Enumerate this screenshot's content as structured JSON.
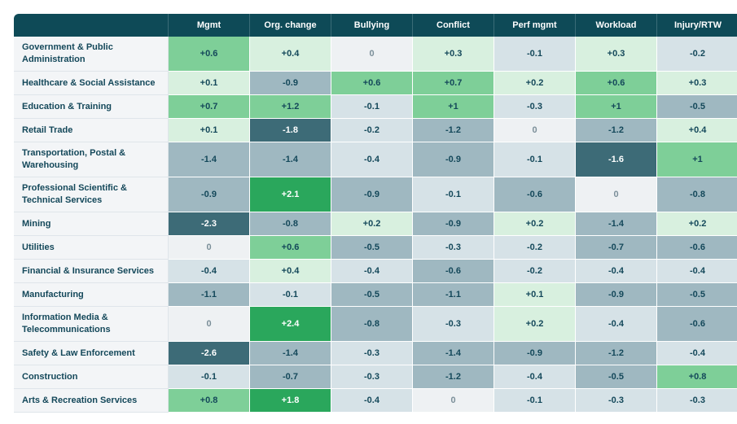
{
  "colors": {
    "header_bg": "#0e4a57",
    "strong_positive": "#2aa75c",
    "positive": "#7ecf98",
    "slight_positive": "#d8f0df",
    "neutral": "#eef1f3",
    "slight_negative": "#d6e2e7",
    "negative": "#9fb8c1",
    "strong_negative": "#3d6b77",
    "industry_text": "#14485a"
  },
  "chart_data": {
    "type": "heatmap",
    "columns": [
      "Mgmt",
      "Org. change",
      "Bullying",
      "Conflict",
      "Perf mgmt",
      "Workload",
      "Injury/RTW"
    ],
    "rows": [
      {
        "industry": "Government & Public Administration",
        "values": [
          0.6,
          0.4,
          0,
          0.3,
          -0.1,
          0.3,
          -0.2
        ],
        "labels": [
          "+0.6",
          "+0.4",
          "0",
          "+0.3",
          "-0.1",
          "+0.3",
          "-0.2"
        ]
      },
      {
        "industry": "Healthcare & Social Assistance",
        "values": [
          0.1,
          -0.9,
          0.6,
          0.7,
          0.2,
          0.6,
          0.3
        ],
        "labels": [
          "+0.1",
          "-0.9",
          "+0.6",
          "+0.7",
          "+0.2",
          "+0.6",
          "+0.3"
        ]
      },
      {
        "industry": "Education & Training",
        "values": [
          0.7,
          1.2,
          -0.1,
          1,
          -0.3,
          1,
          -0.5
        ],
        "labels": [
          "+0.7",
          "+1.2",
          "-0.1",
          "+1",
          "-0.3",
          "+1",
          "-0.5"
        ]
      },
      {
        "industry": "Retail Trade",
        "values": [
          0.1,
          -1.8,
          -0.2,
          -1.2,
          0,
          -1.2,
          0.4
        ],
        "labels": [
          "+0.1",
          "-1.8",
          "-0.2",
          "-1.2",
          "0",
          "-1.2",
          "+0.4"
        ]
      },
      {
        "industry": "Transportation, Postal & Warehousing",
        "values": [
          -1.4,
          -1.4,
          -0.4,
          -0.9,
          -0.1,
          -1.6,
          1
        ],
        "labels": [
          "-1.4",
          "-1.4",
          "-0.4",
          "-0.9",
          "-0.1",
          "-1.6",
          "+1"
        ]
      },
      {
        "industry": "Professional Scientific & Technical Services",
        "values": [
          -0.9,
          2.1,
          -0.9,
          -0.1,
          -0.6,
          0,
          -0.8
        ],
        "labels": [
          "-0.9",
          "+2.1",
          "-0.9",
          "-0.1",
          "-0.6",
          "0",
          "-0.8"
        ]
      },
      {
        "industry": "Mining",
        "values": [
          -2.3,
          -0.8,
          0.2,
          -0.9,
          0.2,
          -1.4,
          0.2
        ],
        "labels": [
          "-2.3",
          "-0.8",
          "+0.2",
          "-0.9",
          "+0.2",
          "-1.4",
          "+0.2"
        ]
      },
      {
        "industry": "Utilities",
        "values": [
          0,
          0.6,
          -0.5,
          -0.3,
          -0.2,
          -0.7,
          -0.6
        ],
        "labels": [
          "0",
          "+0.6",
          "-0.5",
          "-0.3",
          "-0.2",
          "-0.7",
          "-0.6"
        ]
      },
      {
        "industry": "Financial & Insurance Services",
        "values": [
          -0.4,
          0.4,
          -0.4,
          -0.6,
          -0.2,
          -0.4,
          -0.4
        ],
        "labels": [
          "-0.4",
          "+0.4",
          "-0.4",
          "-0.6",
          "-0.2",
          "-0.4",
          "-0.4"
        ]
      },
      {
        "industry": "Manufacturing",
        "values": [
          -1.1,
          -0.1,
          -0.5,
          -1.1,
          0.1,
          -0.9,
          -0.5
        ],
        "labels": [
          "-1.1",
          "-0.1",
          "-0.5",
          "-1.1",
          "+0.1",
          "-0.9",
          "-0.5"
        ]
      },
      {
        "industry": "Information Media & Telecommunications",
        "values": [
          0,
          2.4,
          -0.8,
          -0.3,
          0.2,
          -0.4,
          -0.6
        ],
        "labels": [
          "0",
          "+2.4",
          "-0.8",
          "-0.3",
          "+0.2",
          "-0.4",
          "-0.6"
        ]
      },
      {
        "industry": "Safety & Law Enforcement",
        "values": [
          -2.6,
          -1.4,
          -0.3,
          -1.4,
          -0.9,
          -1.2,
          -0.4
        ],
        "labels": [
          "-2.6",
          "-1.4",
          "-0.3",
          "-1.4",
          "-0.9",
          "-1.2",
          "-0.4"
        ]
      },
      {
        "industry": "Construction",
        "values": [
          -0.1,
          -0.7,
          -0.3,
          -1.2,
          -0.4,
          -0.5,
          0.8
        ],
        "labels": [
          "-0.1",
          "-0.7",
          "-0.3",
          "-1.2",
          "-0.4",
          "-0.5",
          "+0.8"
        ]
      },
      {
        "industry": "Arts & Recreation Services",
        "values": [
          0.8,
          1.8,
          -0.4,
          0,
          -0.1,
          -0.3,
          -0.3
        ],
        "labels": [
          "+0.8",
          "+1.8",
          "-0.4",
          "0",
          "-0.1",
          "-0.3",
          "-0.3"
        ]
      }
    ]
  }
}
